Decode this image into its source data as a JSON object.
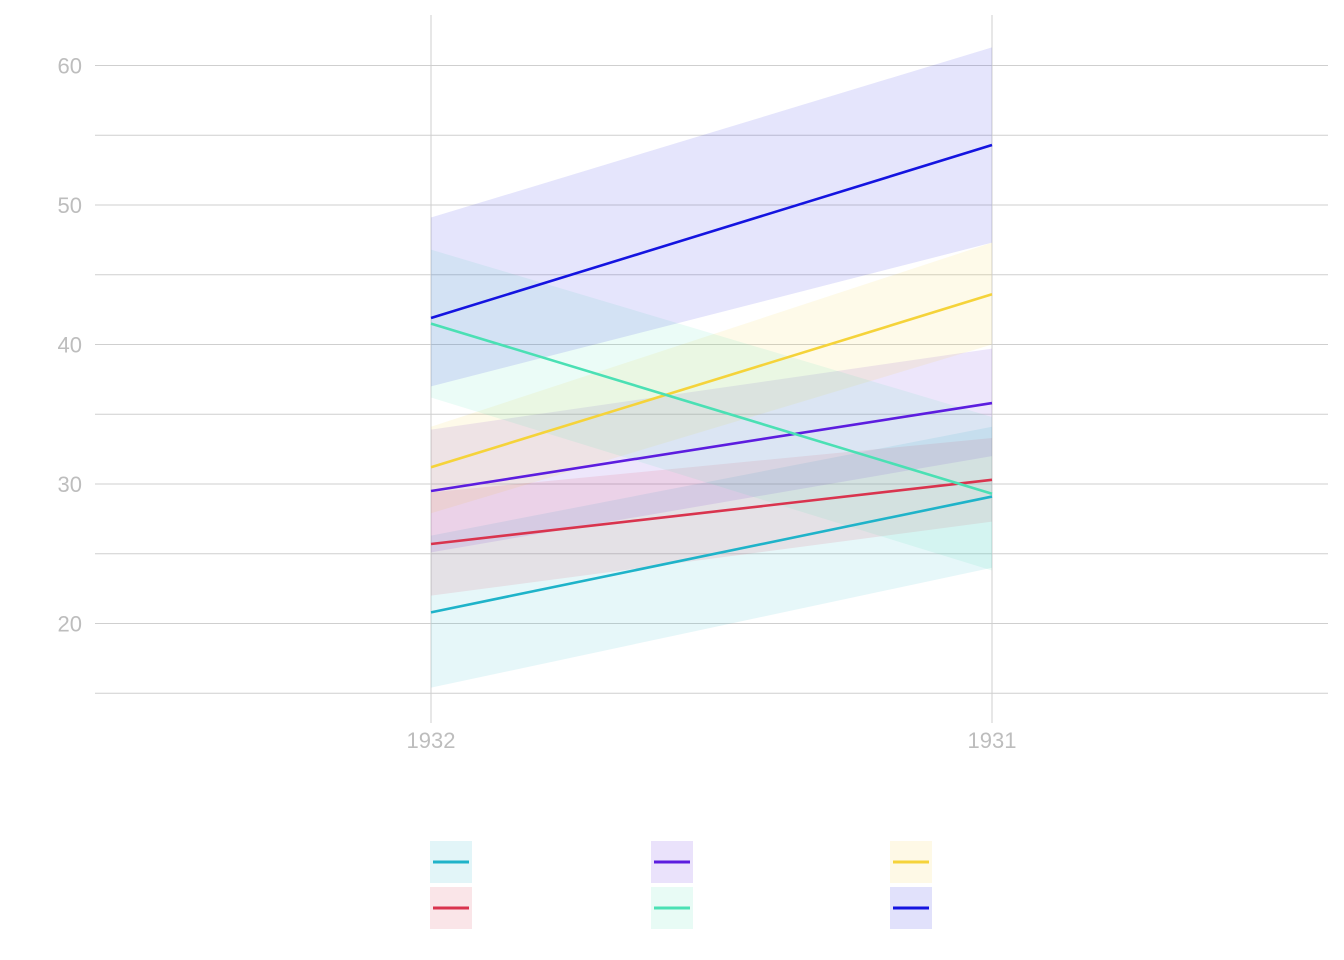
{
  "chart_data": {
    "type": "line",
    "title": "",
    "xlabel": "",
    "ylabel": "",
    "x": [
      "1932",
      "1931"
    ],
    "ylim": [
      15,
      62
    ],
    "yticks": [
      20,
      30,
      40,
      50,
      60
    ],
    "grid": true,
    "legend_position": "bottom",
    "series": [
      {
        "color": "#1fb3c9",
        "values": [
          20.8,
          29.1
        ],
        "lower": [
          15.4,
          24.0
        ],
        "upper": [
          26.3,
          34.1
        ]
      },
      {
        "color": "#5c1ddf",
        "values": [
          29.5,
          35.8
        ],
        "lower": [
          25.1,
          32.0
        ],
        "upper": [
          33.9,
          39.7
        ]
      },
      {
        "color": "#f5d33a",
        "values": [
          31.2,
          43.6
        ],
        "lower": [
          27.9,
          40.0
        ],
        "upper": [
          34.1,
          47.3
        ]
      },
      {
        "color": "#d9344e",
        "values": [
          25.7,
          30.3
        ],
        "lower": [
          22.0,
          27.3
        ],
        "upper": [
          29.4,
          33.3
        ]
      },
      {
        "color": "#4be0b4",
        "values": [
          41.5,
          29.3
        ],
        "lower": [
          36.2,
          23.8
        ],
        "upper": [
          46.8,
          34.8
        ]
      },
      {
        "color": "#1414e0",
        "values": [
          41.9,
          54.3
        ],
        "lower": [
          37.0,
          47.3
        ],
        "upper": [
          49.1,
          61.3
        ]
      }
    ]
  }
}
